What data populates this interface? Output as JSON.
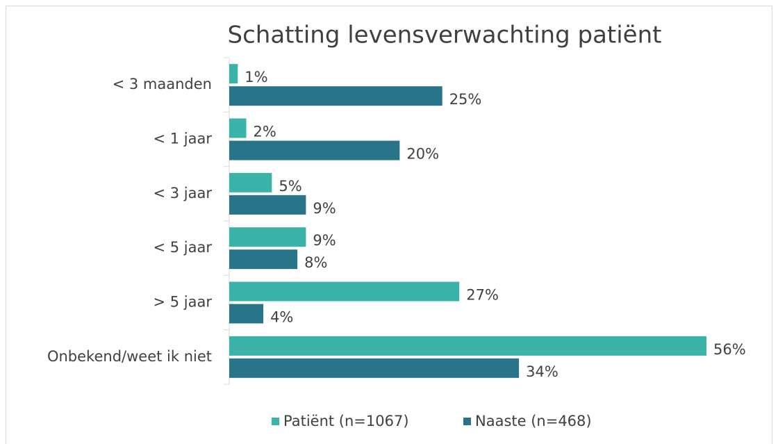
{
  "chart_data": {
    "type": "hbar",
    "title": "Schatting levensverwachting patiënt",
    "categories": [
      "< 3 maanden",
      "< 1 jaar",
      "< 3 jaar",
      "< 5 jaar",
      "> 5 jaar",
      "Onbekend/weet ik niet"
    ],
    "series": [
      {
        "name": "Patiënt (n=1067)",
        "color": "#3bb3a9",
        "values": [
          1,
          2,
          5,
          9,
          27,
          56
        ],
        "value_labels": [
          "1%",
          "2%",
          "5%",
          "9%",
          "27%",
          "56%"
        ]
      },
      {
        "name": "Naaste (n=468)",
        "color": "#2a7489",
        "values": [
          25,
          20,
          9,
          8,
          4,
          34
        ],
        "value_labels": [
          "25%",
          "20%",
          "9%",
          "8%",
          "4%",
          "34%"
        ]
      }
    ],
    "legend": "bottom"
  }
}
